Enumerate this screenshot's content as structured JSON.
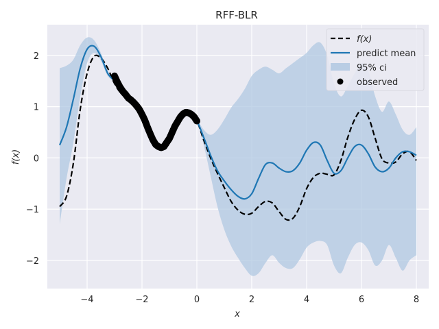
{
  "chart_data": {
    "type": "line",
    "title": "RFF-BLR",
    "xlabel": "x",
    "ylabel": "f(x)",
    "xlim": [
      -5.45,
      8.45
    ],
    "ylim": [
      -2.55,
      2.6
    ],
    "xticks": [
      -4,
      -2,
      0,
      2,
      4,
      6,
      8
    ],
    "yticks": [
      -2,
      -1,
      0,
      1,
      2
    ],
    "xtick_labels": [
      "−4",
      "−2",
      "0",
      "2",
      "4",
      "6",
      "8"
    ],
    "ytick_labels": [
      "−2",
      "−1",
      "0",
      "1",
      "2"
    ],
    "grid": true,
    "legend_position": "top-right",
    "colors": {
      "background": "#EAEAF2",
      "grid": "#FFFFFF",
      "truth": "#000000",
      "mean": "#1F77B4",
      "ci": "#B0C8E2",
      "observed": "#000000"
    },
    "legend": [
      {
        "key": "truth",
        "label": "f(x)"
      },
      {
        "key": "mean",
        "label": "predict mean"
      },
      {
        "key": "ci",
        "label": "95% ci"
      },
      {
        "key": "observed",
        "label": "observed"
      }
    ],
    "series": [
      {
        "key": "truth",
        "style": "dashed",
        "x": [
          -5.0,
          -4.75,
          -4.5,
          -4.25,
          -4.0,
          -3.75,
          -3.5,
          -3.25,
          -3.0,
          -2.75,
          -2.5,
          -2.25,
          -2.0,
          -1.75,
          -1.5,
          -1.25,
          -1.0,
          -0.75,
          -0.5,
          -0.25,
          0.0,
          0.25,
          0.5,
          0.75,
          1.0,
          1.25,
          1.5,
          1.75,
          2.0,
          2.25,
          2.5,
          2.75,
          3.0,
          3.25,
          3.5,
          3.75,
          4.0,
          4.25,
          4.5,
          4.75,
          5.0,
          5.25,
          5.5,
          5.75,
          6.0,
          6.25,
          6.5,
          6.75,
          7.0,
          7.25,
          7.5,
          7.75,
          8.0
        ],
        "y": [
          -0.95,
          -0.75,
          -0.1,
          0.95,
          1.65,
          1.98,
          1.95,
          1.75,
          1.45,
          1.25,
          1.15,
          1.05,
          0.85,
          0.5,
          0.25,
          0.2,
          0.38,
          0.7,
          0.88,
          0.85,
          0.72,
          0.35,
          0.0,
          -0.3,
          -0.58,
          -0.85,
          -1.02,
          -1.1,
          -1.08,
          -0.95,
          -0.85,
          -0.88,
          -1.05,
          -1.2,
          -1.18,
          -0.95,
          -0.6,
          -0.38,
          -0.3,
          -0.32,
          -0.33,
          -0.05,
          0.4,
          0.75,
          0.93,
          0.8,
          0.38,
          -0.02,
          -0.1,
          -0.08,
          0.08,
          0.12,
          -0.05
        ]
      },
      {
        "key": "mean",
        "style": "solid",
        "x": [
          -5.0,
          -4.75,
          -4.5,
          -4.25,
          -4.0,
          -3.75,
          -3.5,
          -3.25,
          -3.0,
          -2.75,
          -2.5,
          -2.25,
          -2.0,
          -1.75,
          -1.5,
          -1.25,
          -1.0,
          -0.75,
          -0.5,
          -0.25,
          0.0,
          0.25,
          0.5,
          0.75,
          1.0,
          1.25,
          1.5,
          1.75,
          2.0,
          2.25,
          2.5,
          2.75,
          3.0,
          3.25,
          3.5,
          3.75,
          4.0,
          4.25,
          4.5,
          4.75,
          5.0,
          5.25,
          5.5,
          5.75,
          6.0,
          6.25,
          6.5,
          6.75,
          7.0,
          7.25,
          7.5,
          7.75,
          8.0
        ],
        "y": [
          0.25,
          0.6,
          1.15,
          1.75,
          2.12,
          2.18,
          1.98,
          1.65,
          1.5,
          1.28,
          1.15,
          1.05,
          0.85,
          0.5,
          0.25,
          0.2,
          0.38,
          0.7,
          0.88,
          0.85,
          0.72,
          0.4,
          0.05,
          -0.25,
          -0.45,
          -0.62,
          -0.75,
          -0.8,
          -0.7,
          -0.4,
          -0.13,
          -0.1,
          -0.2,
          -0.27,
          -0.25,
          -0.1,
          0.15,
          0.3,
          0.25,
          -0.05,
          -0.3,
          -0.25,
          0.0,
          0.22,
          0.25,
          0.08,
          -0.18,
          -0.27,
          -0.2,
          0.0,
          0.12,
          0.12,
          0.05
        ]
      }
    ],
    "ci": {
      "x": [
        -5.0,
        -4.75,
        -4.5,
        -4.25,
        -4.0,
        -3.75,
        -3.5,
        -3.25,
        -3.0,
        -2.75,
        -2.5,
        -2.25,
        -2.0,
        -1.75,
        -1.5,
        -1.25,
        -1.0,
        -0.75,
        -0.5,
        -0.25,
        0.0,
        0.25,
        0.5,
        0.75,
        1.0,
        1.25,
        1.5,
        1.75,
        2.0,
        2.25,
        2.5,
        2.75,
        3.0,
        3.25,
        3.5,
        3.75,
        4.0,
        4.25,
        4.5,
        4.75,
        5.0,
        5.25,
        5.5,
        5.75,
        6.0,
        6.25,
        6.5,
        6.75,
        7.0,
        7.25,
        7.5,
        7.75,
        8.0
      ],
      "upper": [
        1.75,
        1.8,
        1.92,
        2.2,
        2.35,
        2.3,
        2.05,
        1.7,
        1.52,
        1.3,
        1.17,
        1.07,
        0.87,
        0.52,
        0.27,
        0.22,
        0.4,
        0.72,
        0.9,
        0.87,
        0.75,
        0.55,
        0.45,
        0.55,
        0.75,
        0.98,
        1.15,
        1.35,
        1.6,
        1.72,
        1.78,
        1.72,
        1.65,
        1.75,
        1.85,
        1.95,
        2.05,
        2.2,
        2.25,
        2.0,
        1.45,
        1.2,
        1.4,
        1.65,
        1.85,
        1.7,
        1.2,
        0.9,
        1.1,
        0.85,
        0.55,
        0.45,
        0.6
      ],
      "lower": [
        -1.3,
        -0.4,
        0.3,
        1.2,
        1.85,
        2.05,
        1.9,
        1.6,
        1.48,
        1.26,
        1.13,
        1.03,
        0.83,
        0.48,
        0.23,
        0.18,
        0.36,
        0.68,
        0.86,
        0.83,
        0.7,
        0.25,
        -0.35,
        -0.95,
        -1.4,
        -1.72,
        -1.95,
        -2.15,
        -2.3,
        -2.25,
        -2.05,
        -1.9,
        -2.05,
        -2.15,
        -2.15,
        -1.98,
        -1.75,
        -1.65,
        -1.62,
        -1.7,
        -2.1,
        -2.25,
        -1.95,
        -1.7,
        -1.65,
        -1.8,
        -2.1,
        -2.0,
        -1.7,
        -1.95,
        -2.2,
        -2.0,
        -1.9
      ]
    },
    "observed": {
      "x_range": [
        -3.0,
        0.0
      ],
      "x": [
        -3.0,
        -2.9,
        -2.8,
        -2.7,
        -2.6,
        -2.5,
        -2.4,
        -2.3,
        -2.2,
        -2.1,
        -2.0,
        -1.9,
        -1.8,
        -1.7,
        -1.6,
        -1.5,
        -1.4,
        -1.3,
        -1.2,
        -1.1,
        -1.0,
        -0.9,
        -0.8,
        -0.7,
        -0.6,
        -0.5,
        -0.4,
        -0.3,
        -0.2,
        -0.1,
        0.0
      ],
      "y": [
        1.6,
        1.48,
        1.38,
        1.3,
        1.24,
        1.17,
        1.13,
        1.08,
        1.02,
        0.95,
        0.85,
        0.74,
        0.6,
        0.47,
        0.35,
        0.26,
        0.22,
        0.2,
        0.22,
        0.3,
        0.38,
        0.5,
        0.62,
        0.71,
        0.8,
        0.86,
        0.89,
        0.88,
        0.85,
        0.8,
        0.72
      ]
    }
  }
}
